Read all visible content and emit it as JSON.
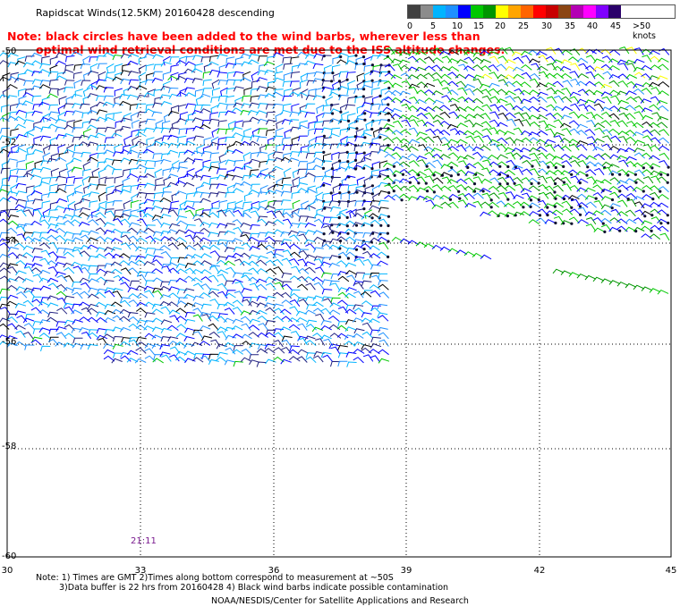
{
  "title": "Rapidscat Winds(12.5KM) 20160428 descending",
  "note": {
    "line1": "Note: black circles have been added to the wind barbs, wherever less than",
    "line2": "optimal wind retrieval conditions are met due to the ISS altitude changes.",
    "color": "#ff0000"
  },
  "legend": {
    "unit_label": ">50 knots",
    "labels": [
      "0",
      "5",
      "10",
      "15",
      "20",
      "25",
      "30",
      "35",
      "40",
      "45"
    ],
    "colors": [
      "#404040",
      "#8c8c8c",
      "#00b4ff",
      "#1e90ff",
      "#0000ff",
      "#00c800",
      "#009600",
      "#ffff00",
      "#ffa500",
      "#ff6400",
      "#ff0000",
      "#c80000",
      "#8b4513",
      "#b400b4",
      "#ff00ff",
      "#8000ff",
      "#2a006a"
    ]
  },
  "map": {
    "lon_labels": [
      "30",
      "33",
      "36",
      "39",
      "42",
      "45"
    ],
    "lat_labels": [
      "-50",
      "-52",
      "-54",
      "-56",
      "-58",
      "-60"
    ],
    "time_label": "21:11"
  },
  "footnote": {
    "line1": "Note: 1) Times are GMT 2)Times along bottom correspond to measurement at ~50S",
    "line2": "3)Data buffer is 22 hrs from 20160428 4) Black wind barbs indicate possible contamination"
  },
  "credit": "NOAA/NESDIS/Center for Satellite Applications and Research"
}
